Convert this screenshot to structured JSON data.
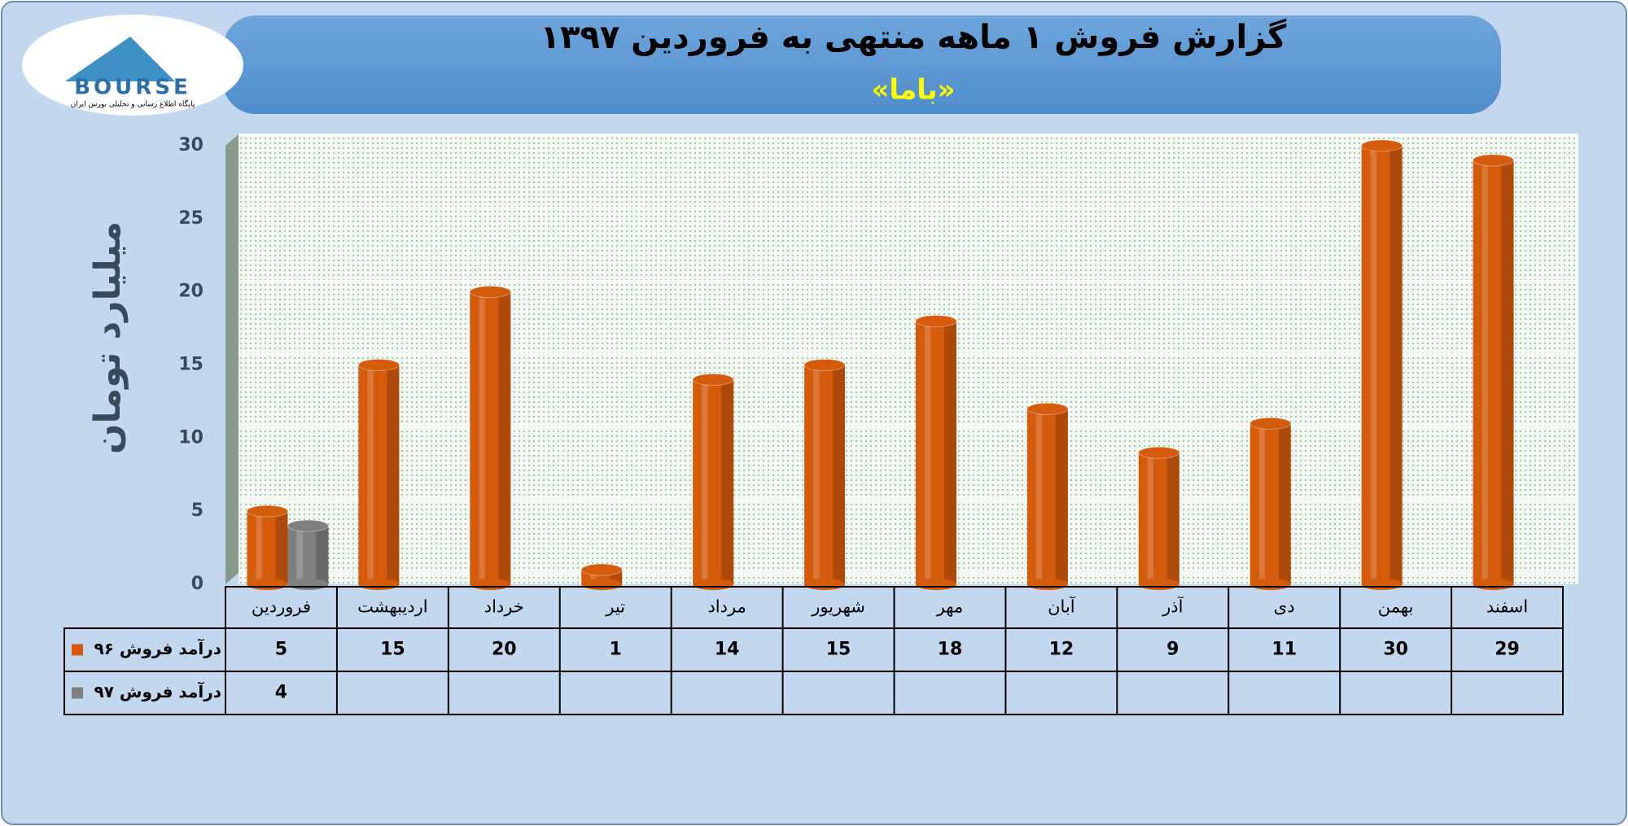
{
  "logo": {
    "name": "BOURSE",
    "tagline": "پایگاه اطلاع رسانی و تحلیلی بورس ایران"
  },
  "chart_data": {
    "type": "bar",
    "title": "گزارش فروش ۱ ماهه منتهی به فروردین ۱۳۹۷",
    "subtitle": "«باما»",
    "y_label": "میلیارد تومان",
    "categories": [
      "فروردین",
      "اردیبهشت",
      "خرداد",
      "تیر",
      "مرداد",
      "شهریور",
      "مهر",
      "آبان",
      "آذر",
      "دی",
      "بهمن",
      "اسفند"
    ],
    "series": [
      {
        "name": "درآمد فروش ۹۶",
        "color": "#d45a0c",
        "values": [
          5,
          15,
          20,
          1,
          14,
          15,
          18,
          12,
          9,
          11,
          30,
          29
        ]
      },
      {
        "name": "درآمد فروش ۹۷",
        "color": "#7f7f7f",
        "values": [
          4,
          null,
          null,
          null,
          null,
          null,
          null,
          null,
          null,
          null,
          null,
          null
        ]
      }
    ],
    "ylim": [
      0,
      30
    ],
    "yticks": [
      0,
      5,
      10,
      15,
      20,
      25,
      30
    ],
    "grid": true
  }
}
